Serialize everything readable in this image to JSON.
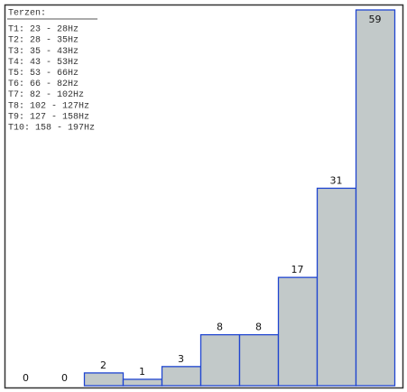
{
  "chart_data": {
    "type": "bar",
    "legend_title": "Terzen:",
    "legend_items": [
      "T1: 23 - 28Hz",
      "T2: 28 - 35Hz",
      "T3: 35 - 43Hz",
      "T4: 43 - 53Hz",
      "T5: 53 - 66Hz",
      "T6: 66 - 82Hz",
      "T7: 82 - 102Hz",
      "T8: 102 - 127Hz",
      "T9: 127 - 158Hz",
      "T10: 158 - 197Hz"
    ],
    "values": [
      0,
      0,
      2,
      1,
      3,
      8,
      8,
      17,
      31,
      59
    ],
    "color": "#c2c9c9",
    "edge_color": "#1f45d0"
  }
}
